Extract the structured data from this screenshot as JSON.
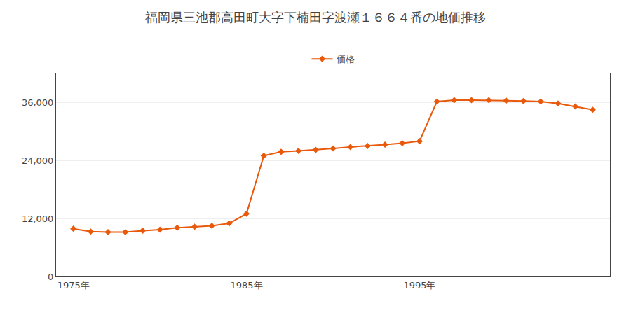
{
  "chart_data": {
    "type": "line",
    "title": "福岡県三池郡高田町大字下楠田字渡瀬１６６４番の地価推移",
    "x": [
      1975,
      1976,
      1977,
      1978,
      1979,
      1980,
      1981,
      1982,
      1983,
      1984,
      1985,
      1986,
      1987,
      1988,
      1989,
      1990,
      1991,
      1992,
      1993,
      1994,
      1995,
      1996,
      1997,
      1998,
      1999,
      2000,
      2001,
      2002,
      2003,
      2004,
      2005
    ],
    "series": [
      {
        "name": "価格",
        "color": "#e8590c",
        "marker": "diamond",
        "values": [
          9900,
          9300,
          9200,
          9200,
          9500,
          9700,
          10100,
          10300,
          10500,
          11000,
          13000,
          25000,
          25800,
          26000,
          26200,
          26500,
          26800,
          27000,
          27300,
          27600,
          28000,
          36200,
          36500,
          36500,
          36500,
          36400,
          36300,
          36200,
          35800,
          35200,
          34500
        ]
      }
    ],
    "xlim": [
      1974,
      2006
    ],
    "xticks": [
      {
        "value": 1975,
        "label": "1975年"
      },
      {
        "value": 1985,
        "label": "1985年"
      },
      {
        "value": 1995,
        "label": "1995年"
      }
    ],
    "ylim": [
      0,
      42000
    ],
    "yticks": [
      0,
      {
        "value": 12000,
        "label": "12,000"
      },
      {
        "value": 24000,
        "label": "24,000"
      },
      {
        "value": 36000,
        "label": "36,000"
      }
    ],
    "grid": "y",
    "legend": "top"
  }
}
